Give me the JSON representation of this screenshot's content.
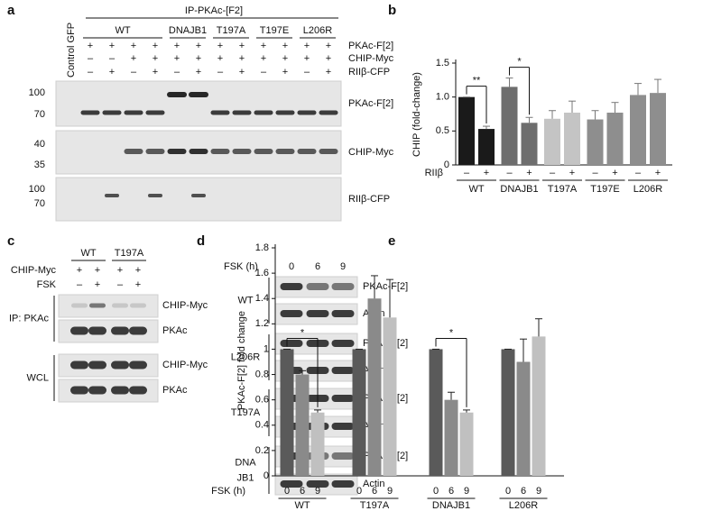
{
  "figure": {
    "a": {
      "letter": "a",
      "ip_label": "IP-PKAc-[F2]",
      "control_label": "Control GFP",
      "groups": [
        "WT",
        "DNAJB1",
        "T197A",
        "T197E",
        "L206R"
      ],
      "rows": [
        {
          "label": "PKAc-F[2]",
          "signs": [
            "+",
            "+",
            "+",
            "+",
            "+",
            "+",
            "+",
            "+",
            "+",
            "+",
            "+",
            "+"
          ]
        },
        {
          "label": "CHIP-Myc",
          "signs": [
            "–",
            "–",
            "+",
            "+",
            "+",
            "+",
            "+",
            "+",
            "+",
            "+",
            "+",
            "+"
          ]
        },
        {
          "label": "RIIβ-CFP",
          "signs": [
            "–",
            "+",
            "–",
            "+",
            "–",
            "+",
            "–",
            "+",
            "–",
            "+",
            "–",
            "+"
          ]
        }
      ],
      "blots": [
        {
          "label": "PKAc-F[2]",
          "ladder": [
            "100",
            "70"
          ]
        },
        {
          "label": "CHIP-Myc",
          "ladder": [
            "40",
            "35"
          ]
        },
        {
          "label": "RIIβ-CFP",
          "ladder": [
            "100",
            "70"
          ]
        }
      ]
    },
    "c": {
      "letter": "c",
      "groups": [
        "WT",
        "T197A"
      ],
      "rows": [
        {
          "label": "CHIP-Myc",
          "signs": [
            "+",
            "+",
            "+",
            "+"
          ]
        },
        {
          "label": "FSK",
          "signs": [
            "–",
            "+",
            "–",
            "+"
          ]
        }
      ],
      "sections": [
        {
          "label": "IP: PKAc",
          "blots": [
            "CHIP-Myc",
            "PKAc"
          ]
        },
        {
          "label": "WCL",
          "blots": [
            "CHIP-Myc",
            "PKAc"
          ]
        }
      ]
    },
    "d": {
      "letter": "d",
      "time_label": "FSK (h)",
      "times": [
        "0",
        "6",
        "9"
      ],
      "groups": [
        {
          "label": [
            "WT"
          ],
          "blots": [
            "PKAc-F[2]",
            "Actin"
          ]
        },
        {
          "label": [
            "L206R"
          ],
          "blots": [
            "PKAc-F[2]",
            "Actin"
          ]
        },
        {
          "label": [
            "T197A"
          ],
          "blots": [
            "PKAc-F[2]",
            "Actin"
          ]
        },
        {
          "label": [
            "DNA",
            "JB1"
          ],
          "blots": [
            "PKAc-F[2]",
            "Actin"
          ]
        }
      ]
    }
  },
  "chart_data": [
    {
      "type": "bar",
      "panel_label": "b",
      "ylabel": "CHIP (fold-change)",
      "group_label": "RIIβ",
      "categories": [
        "WT",
        "DNAJB1",
        "T197A",
        "T197E",
        "L206R"
      ],
      "series": [
        {
          "name": "–",
          "values": [
            1.0,
            1.15,
            0.68,
            0.67,
            1.03
          ],
          "errors": [
            0,
            0.13,
            0.12,
            0.13,
            0.17
          ],
          "colors": [
            "#1a1a1a",
            "#6e6e6e",
            "#c4c4c4",
            "#8e8e8e",
            "#8e8e8e"
          ]
        },
        {
          "name": "+",
          "values": [
            0.53,
            0.62,
            0.77,
            0.77,
            1.06
          ],
          "errors": [
            0.04,
            0.08,
            0.17,
            0.15,
            0.2
          ],
          "colors": [
            "#1a1a1a",
            "#6e6e6e",
            "#c4c4c4",
            "#8e8e8e",
            "#8e8e8e"
          ]
        }
      ],
      "ylim": [
        0,
        1.5
      ],
      "yticks": [
        0,
        0.5,
        {
          "value": 1,
          "label": "1.0"
        },
        1.5
      ],
      "annotations": [
        {
          "text": "**"
        },
        {
          "text": "*"
        }
      ]
    },
    {
      "type": "bar",
      "panel_label": "e",
      "ylabel": "PKAc-F[2] fold change",
      "xlabel": "FSK (h)",
      "categories": [
        "WT",
        "T197A",
        "DNAJB1",
        "L206R"
      ],
      "series": [
        {
          "name": "0",
          "color": "#5a5a5a",
          "values": [
            1,
            1,
            1,
            1
          ],
          "errors": [
            0,
            0,
            0,
            0
          ]
        },
        {
          "name": "6",
          "color": "#8a8a8a",
          "values": [
            0.8,
            1.4,
            0.6,
            0.9
          ],
          "errors": [
            0.03,
            0.18,
            0.06,
            0.18
          ]
        },
        {
          "name": "9",
          "color": "#c0c0c0",
          "values": [
            0.5,
            1.25,
            0.5,
            1.1
          ],
          "errors": [
            0.02,
            0.3,
            0.02,
            0.14
          ]
        }
      ],
      "ylim": [
        0,
        1.8
      ],
      "yticks": [
        0,
        0.2,
        0.4,
        0.6,
        0.8,
        1,
        1.2,
        1.4,
        1.6,
        1.8
      ],
      "annotations": [
        {
          "text": "*"
        },
        {
          "text": "*"
        }
      ]
    }
  ]
}
